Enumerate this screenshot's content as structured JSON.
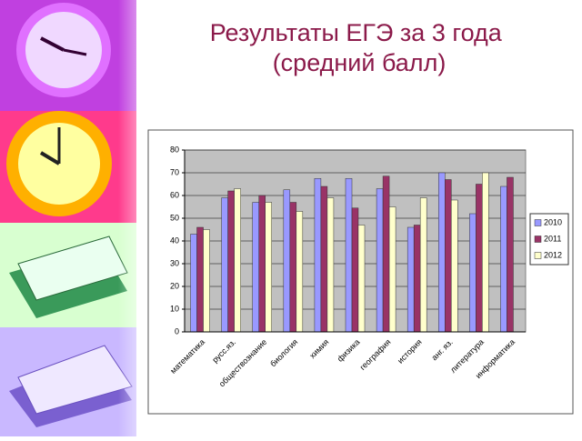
{
  "chart_data": {
    "type": "bar",
    "title": "Результаты ЕГЭ за 3 года (средний балл)",
    "categories": [
      "математика",
      "русс.яз.",
      "обществознание",
      "биология",
      "химия",
      "физика",
      "география",
      "история",
      "анг. яз.",
      "литература",
      "информатика"
    ],
    "series": [
      {
        "name": "2010",
        "color": "#9999ff",
        "values": [
          43,
          59,
          57,
          62.5,
          67.5,
          67.5,
          63,
          46,
          70,
          52,
          64
        ]
      },
      {
        "name": "2011",
        "color": "#993366",
        "values": [
          46,
          62,
          60,
          57,
          64,
          54.5,
          68.5,
          47,
          67,
          65,
          68
        ]
      },
      {
        "name": "2012",
        "color": "#ffffcc",
        "values": [
          45,
          63,
          57,
          53,
          59,
          47,
          55,
          59,
          58,
          70,
          null
        ]
      }
    ],
    "ylim": [
      0,
      80
    ],
    "yticks": [
      0,
      10,
      20,
      30,
      40,
      50,
      60,
      70,
      80
    ],
    "grid": true,
    "legend": "right"
  }
}
